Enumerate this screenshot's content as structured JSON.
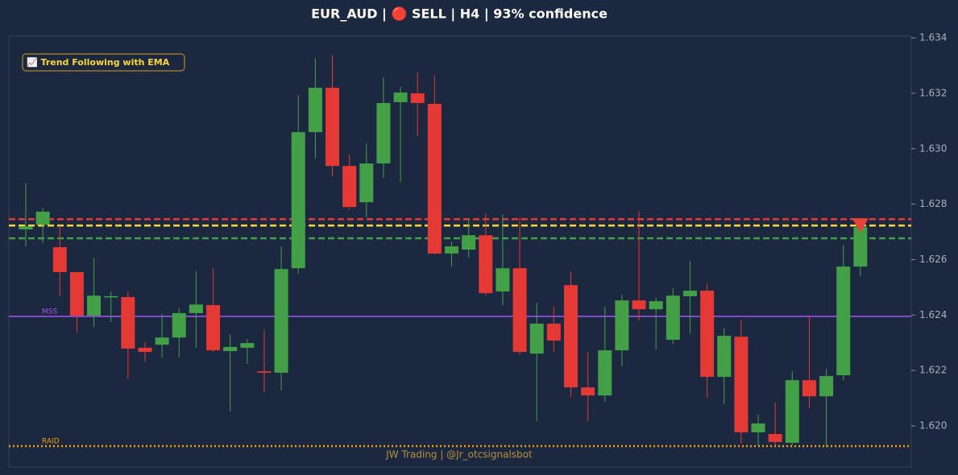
{
  "chart_data": {
    "type": "candlestick",
    "title": "EUR_AUD | 🔴 SELL | H4 | 93% confidence",
    "strategy": "📈 Trend Following with EMA",
    "watermark": "JW Trading | @Jr_otcsignalsbot",
    "up_color": "#43a047",
    "down_color": "#e53935",
    "ylim": [
      1.61852,
      1.63406
    ],
    "yticks": [
      {
        "value": 1.62,
        "label": "1.620"
      },
      1.622,
      1.624,
      1.626,
      1.628,
      {
        "value": 1.63,
        "label": "1.630"
      },
      1.632,
      1.634
    ],
    "open": [
      1.62709,
      1.62726,
      1.62645,
      1.62555,
      1.62398,
      1.62465,
      1.62465,
      1.62282,
      1.62293,
      1.62319,
      1.62407,
      1.62436,
      1.6227,
      1.62282,
      1.62197,
      1.62192,
      1.62569,
      1.6306,
      1.6322,
      1.62938,
      1.62807,
      1.62947,
      1.63168,
      1.632,
      1.63162,
      1.62622,
      1.62636,
      1.62688,
      1.62485,
      1.62569,
      1.62261,
      1.62369,
      1.62508,
      1.62139,
      1.6211,
      1.62273,
      1.62453,
      1.62421,
      1.62311,
      1.62468,
      1.62488,
      1.62177,
      1.62322,
      1.61977,
      1.61971,
      1.61939,
      1.62165,
      1.62107,
      1.62183,
      1.62575
    ],
    "high": [
      1.62877,
      1.62787,
      1.62723,
      1.62555,
      1.62607,
      1.62485,
      1.62485,
      1.62302,
      1.62404,
      1.62424,
      1.62558,
      1.62569,
      1.62331,
      1.62314,
      1.62348,
      1.62648,
      1.63194,
      1.63327,
      1.63339,
      1.62979,
      1.63019,
      1.63258,
      1.63223,
      1.63275,
      1.63264,
      1.62665,
      1.62749,
      1.62767,
      1.62764,
      1.62752,
      1.62444,
      1.6243,
      1.62558,
      1.62267,
      1.6243,
      1.62473,
      1.62775,
      1.62462,
      1.62497,
      1.62595,
      1.62514,
      1.62354,
      1.62383,
      1.62041,
      1.62084,
      1.62197,
      1.62398,
      1.62206,
      1.62653,
      1.62749
    ],
    "low": [
      1.62648,
      1.62659,
      1.62468,
      1.62337,
      1.62357,
      1.62375,
      1.62171,
      1.62232,
      1.62247,
      1.62247,
      1.62282,
      1.62267,
      1.62052,
      1.62224,
      1.62122,
      1.62128,
      1.62549,
      1.62964,
      1.629,
      1.62781,
      1.62752,
      1.62895,
      1.6288,
      1.63046,
      1.62619,
      1.62575,
      1.62607,
      1.6247,
      1.62436,
      1.62258,
      1.62017,
      1.62267,
      1.62104,
      1.62017,
      1.62087,
      1.62215,
      1.6238,
      1.62276,
      1.62296,
      1.62334,
      1.62102,
      1.62078,
      1.61936,
      1.6193,
      1.6193,
      1.6193,
      1.62064,
      1.61924,
      1.62165,
      1.6254
    ],
    "close": [
      1.6272,
      1.62773,
      1.62555,
      1.62398,
      1.6247,
      1.62468,
      1.62279,
      1.62267,
      1.62319,
      1.62407,
      1.62438,
      1.62273,
      1.62285,
      1.62299,
      1.62192,
      1.62566,
      1.6306,
      1.6322,
      1.62938,
      1.6279,
      1.62947,
      1.63165,
      1.63203,
      1.63165,
      1.62622,
      1.62648,
      1.62688,
      1.62479,
      1.62569,
      1.62267,
      1.62369,
      1.62308,
      1.62139,
      1.6211,
      1.62273,
      1.62453,
      1.62421,
      1.6245,
      1.6247,
      1.62488,
      1.62177,
      1.62325,
      1.61977,
      1.62009,
      1.61942,
      1.62165,
      1.62107,
      1.6218,
      1.62575,
      1.62717
    ],
    "levels": [
      {
        "value": 1.62746,
        "color": "#e53935",
        "style": "dashed"
      },
      {
        "value": 1.62723,
        "color": "#fdd835",
        "style": "dashed"
      },
      {
        "value": 1.62677,
        "color": "#43a047",
        "style": "dashed"
      },
      {
        "value": 1.62395,
        "color": "#a855f7",
        "style": "solid",
        "label": "MSS"
      },
      {
        "value": 1.61927,
        "color": "#f59e0b",
        "style": "dotted",
        "label": "RAID"
      }
    ],
    "signal": {
      "value": 1.62723,
      "color": "#e8433a"
    }
  }
}
